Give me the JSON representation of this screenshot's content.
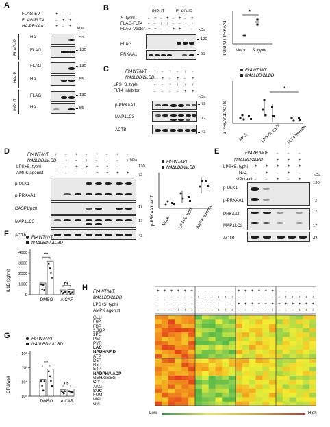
{
  "panels": {
    "A": "A",
    "B": "B",
    "C": "C",
    "D": "D",
    "E": "E",
    "F": "F",
    "G": "G",
    "H": "H"
  },
  "kda": "kDa",
  "panelA": {
    "rows": [
      "FLAG-EV",
      "FLAG-FLT4",
      "HA-PRKAA1"
    ],
    "signs": [
      [
        "+",
        "-",
        "-"
      ],
      [
        "-",
        "+",
        "+"
      ],
      [
        "+",
        "-",
        "+"
      ]
    ],
    "groups": [
      "FLAG-IP",
      "HA-IP",
      "INPUT"
    ],
    "blots": [
      "HA",
      "FLAG",
      "FLAG",
      "HA",
      "FLAG",
      "HA"
    ],
    "markers": [
      "55",
      "130",
      "130",
      "55",
      "130",
      "55"
    ]
  },
  "panelB": {
    "headers": [
      "INPUT",
      "FLAG-IP"
    ],
    "rows": [
      "S. typhi",
      "FLAG-FLT4",
      "FLAG-Vector"
    ],
    "signs": [
      [
        "-",
        "+",
        "-",
        "+",
        "-",
        "+",
        "-",
        "+"
      ],
      [
        "-",
        "-",
        "+",
        "+",
        "-",
        "-",
        "+",
        "+"
      ],
      [
        "+",
        "+",
        "-",
        "-",
        "+",
        "+",
        "-",
        "-"
      ]
    ],
    "blots": [
      "FLAG",
      "PRKAA1"
    ],
    "markers": [
      "130",
      "55"
    ],
    "chart": {
      "ylabel": "IP:INPUT PRKAA1",
      "categories": [
        "Mock",
        "S. typhi"
      ],
      "sig": "*"
    }
  },
  "panelC": {
    "rows": [
      "Flt4WT/WT",
      "flt4ΔLBD/ΔLBD",
      "LPS+S. typhi",
      "FLT4 Inhibitor"
    ],
    "signs": [
      [
        "+",
        "-",
        "+",
        "-",
        "+",
        "-"
      ],
      [
        "-",
        "+",
        "-",
        "+",
        "-",
        "+"
      ],
      [
        "-",
        "-",
        "+",
        "+",
        "+",
        "+"
      ],
      [
        "-",
        "-",
        "-",
        "-",
        "+",
        "+"
      ]
    ],
    "blots": [
      "p-PRKAA1",
      "MAP1LC3",
      "ACTB"
    ],
    "markers": [
      "72",
      "17",
      "43"
    ],
    "chart": {
      "ylabel": "p-PRKAA1:ACTB",
      "legend": [
        "Flt4WT/WT",
        "flt4ΔLBD/ΔLBD"
      ],
      "categories": [
        "Mock",
        "LPS+S. typhi",
        "FLT4 Inhibitor"
      ],
      "sig": "*"
    }
  },
  "panelD": {
    "rows": [
      "Flt4WT/WT",
      "flt4ΔLBD/ΔLBD",
      "LPS+S. typhi",
      "AMPK agonist"
    ],
    "blots": [
      "p-ULK1",
      "p-PRKAA1",
      "CASP1/p20",
      "MAP1LC3",
      "ACTB"
    ],
    "markers": [
      "130",
      "72",
      "17",
      "17",
      "43"
    ],
    "chart": {
      "ylabel": "p-PRKAA1: ACT",
      "legend": [
        "Flt4WT/WT",
        "flt4ΔLBD/ΔLBD"
      ],
      "categories": [
        "Mock",
        "LPS+S. typhi",
        "AMPK agonist"
      ]
    }
  },
  "panelE": {
    "rows": [
      "Flt4WT/WT",
      "flt4ΔLBD/ΔLBD",
      "LPS+S. typhi",
      "N.C.",
      "siPrkaa1"
    ],
    "blots": [
      "p-ULK1",
      "p-PRKAA1",
      "PRKAA1",
      "MAP1LC3",
      "ACTB"
    ],
    "markers": [
      "130",
      "72",
      "72",
      "17",
      "43"
    ]
  },
  "chart_data": [
    {
      "type": "bar",
      "panel": "F",
      "ylabel": "IL1B (pg/ml)",
      "ylim": [
        0,
        4000
      ],
      "yticks": [
        "0",
        "1000",
        "2000",
        "3000",
        "4000"
      ],
      "categories": [
        "DMSO",
        "AICAR"
      ],
      "legend": [
        "Flt4WT/WT",
        "flt4ΔLBD / ΔLBD"
      ],
      "series": [
        {
          "name": "Flt4WT/WT",
          "values": [
            1100,
            450
          ]
        },
        {
          "name": "flt4ΔLBD / ΔLBD",
          "values": [
            3150,
            500
          ]
        }
      ],
      "annotations": [
        "**",
        "ns"
      ]
    },
    {
      "type": "bar",
      "panel": "G",
      "ylabel": "CFU/well",
      "yscale": "log",
      "ylim": [
        100000,
        100000000
      ],
      "yticks": [
        "10⁵",
        "10⁶",
        "10⁷",
        "10⁸"
      ],
      "categories": [
        "DMSO",
        "AICAR"
      ],
      "legend": [
        "Flt4WT/WT",
        "flt4ΔLBD / ΔLBD"
      ],
      "series": [
        {
          "name": "Flt4WT/WT",
          "values": [
            1500000,
            280000
          ]
        },
        {
          "name": "flt4ΔLBD / ΔLBD",
          "values": [
            8000000,
            320000
          ]
        }
      ],
      "annotations": [
        "**",
        "ns"
      ]
    },
    {
      "type": "heatmap",
      "panel": "H",
      "conditions": [
        "Flt4WT/WT",
        "flt4ΔLBD/ΔLBD",
        "LPS+S. typhi",
        "AMPK agonist"
      ],
      "metabolites": [
        "GLU",
        "F6P",
        "FBP",
        "2,3GP",
        "3PG",
        "PEP",
        "PYR",
        "LAC",
        "NADH/NAD",
        "ATP",
        "D5P",
        "R5P",
        "E4P",
        "NADPH/NADP",
        "GSH/GSSG",
        "CIT",
        "AKG",
        "SUC",
        "FUM",
        "MAL",
        "Gln"
      ],
      "bold": [
        "LAC",
        "NADH/NAD",
        "NADPH/NADP",
        "CIT",
        "SUC"
      ],
      "scale": [
        "Low",
        "High"
      ]
    }
  ]
}
